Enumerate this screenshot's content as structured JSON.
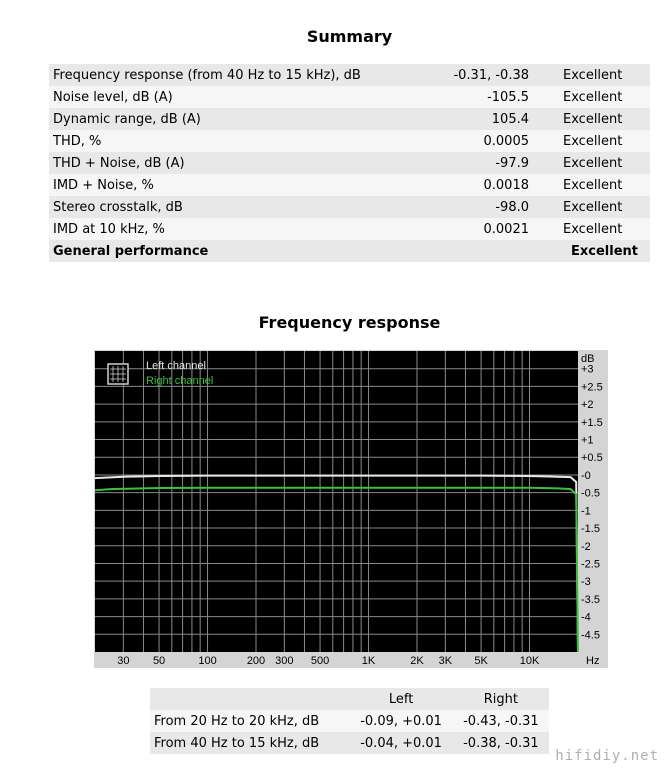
{
  "summary": {
    "title": "Summary",
    "rows": [
      {
        "label": "Frequency response (from 40 Hz to 15 kHz), dB",
        "value": "-0.31, -0.38",
        "rating": "Excellent"
      },
      {
        "label": "Noise level, dB (A)",
        "value": "-105.5",
        "rating": "Excellent"
      },
      {
        "label": "Dynamic range, dB (A)",
        "value": "105.4",
        "rating": "Excellent"
      },
      {
        "label": "THD, %",
        "value": "0.0005",
        "rating": "Excellent"
      },
      {
        "label": "THD + Noise, dB (A)",
        "value": "-97.9",
        "rating": "Excellent"
      },
      {
        "label": "IMD + Noise, %",
        "value": "0.0018",
        "rating": "Excellent"
      },
      {
        "label": "Stereo crosstalk, dB",
        "value": "-98.0",
        "rating": "Excellent"
      },
      {
        "label": "IMD at 10 kHz, %",
        "value": "0.0021",
        "rating": "Excellent"
      }
    ],
    "total": {
      "label": "General performance",
      "rating": "Excellent"
    }
  },
  "chart_data": {
    "type": "line",
    "title": "Frequency response",
    "ylabel": "dB",
    "xlabel": "Hz",
    "xscale": "log",
    "xlim": [
      20,
      20000
    ],
    "ylim": [
      -5,
      3.5
    ],
    "grid": true,
    "legend_position": "top-left",
    "x_ticks": [
      {
        "v": 30,
        "t": "30"
      },
      {
        "v": 50,
        "t": "50"
      },
      {
        "v": 100,
        "t": "100"
      },
      {
        "v": 200,
        "t": "200"
      },
      {
        "v": 300,
        "t": "300"
      },
      {
        "v": 500,
        "t": "500"
      },
      {
        "v": 1000,
        "t": "1K"
      },
      {
        "v": 2000,
        "t": "2K"
      },
      {
        "v": 3000,
        "t": "3K"
      },
      {
        "v": 5000,
        "t": "5K"
      },
      {
        "v": 10000,
        "t": "10K"
      }
    ],
    "y_ticks": [
      {
        "v": 3,
        "t": "+3"
      },
      {
        "v": 2.5,
        "t": "+2.5"
      },
      {
        "v": 2,
        "t": "+2"
      },
      {
        "v": 1.5,
        "t": "+1.5"
      },
      {
        "v": 1,
        "t": "+1"
      },
      {
        "v": 0.5,
        "t": "+0.5"
      },
      {
        "v": 0,
        "t": "-0"
      },
      {
        "v": -0.5,
        "t": "-0.5"
      },
      {
        "v": -1,
        "t": "-1"
      },
      {
        "v": -1.5,
        "t": "-1.5"
      },
      {
        "v": -2,
        "t": "-2"
      },
      {
        "v": -2.5,
        "t": "-2.5"
      },
      {
        "v": -3,
        "t": "-3"
      },
      {
        "v": -3.5,
        "t": "-3.5"
      },
      {
        "v": -4,
        "t": "-4"
      },
      {
        "v": -4.5,
        "t": "-4.5"
      }
    ],
    "series": [
      {
        "name": "Left channel",
        "color": "#e8e8e8",
        "x": [
          20,
          25,
          30,
          40,
          50,
          100,
          200,
          500,
          1000,
          2000,
          5000,
          10000,
          15000,
          18000,
          19500,
          20000
        ],
        "y": [
          -0.09,
          -0.07,
          -0.05,
          -0.04,
          -0.03,
          -0.02,
          -0.02,
          -0.02,
          -0.02,
          -0.02,
          -0.02,
          -0.03,
          -0.05,
          -0.06,
          -0.2,
          -5.0
        ]
      },
      {
        "name": "Right channel",
        "color": "#3fbf3f",
        "x": [
          20,
          25,
          30,
          40,
          50,
          100,
          200,
          500,
          1000,
          2000,
          5000,
          10000,
          15000,
          18000,
          19500,
          20000
        ],
        "y": [
          -0.43,
          -0.4,
          -0.39,
          -0.38,
          -0.37,
          -0.36,
          -0.36,
          -0.36,
          -0.36,
          -0.36,
          -0.36,
          -0.36,
          -0.38,
          -0.4,
          -0.55,
          -5.0
        ]
      }
    ]
  },
  "fr_table": {
    "headers": {
      "left": "Left",
      "right": "Right"
    },
    "rows": [
      {
        "label": "From 20 Hz to 20 kHz, dB",
        "left": "-0.09, +0.01",
        "right": "-0.43, -0.31"
      },
      {
        "label": "From 40 Hz to 15 kHz, dB",
        "left": "-0.04, +0.01",
        "right": "-0.38, -0.31"
      }
    ]
  },
  "watermark": "hifidiy.net",
  "colors": {
    "plot_bg": "#000000",
    "frame_bg": "#d4d4d4",
    "grid": "#8a8a8a"
  }
}
